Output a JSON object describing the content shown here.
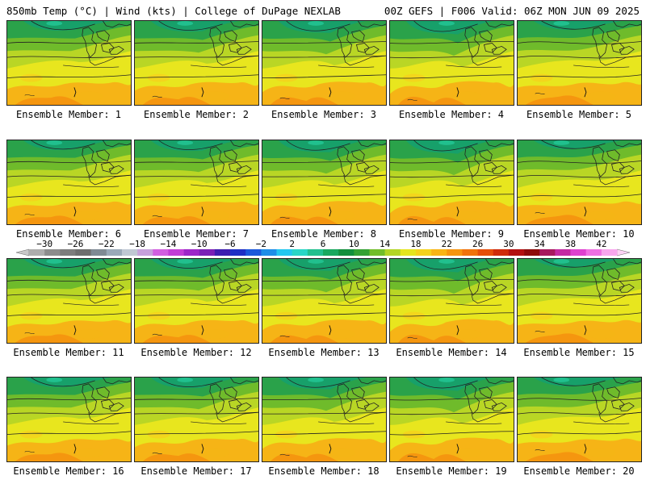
{
  "header": {
    "left": "850mb Temp (°C) | Wind (kts) | College of DuPage NEXLAB",
    "right": "00Z GEFS | F006 Valid: 06Z MON JUN 09 2025"
  },
  "label_prefix": "Ensemble Member: ",
  "members": [
    1,
    2,
    3,
    4,
    5,
    6,
    7,
    8,
    9,
    10,
    11,
    12,
    13,
    14,
    15,
    16,
    17,
    18,
    19,
    20
  ],
  "colorbar": {
    "tick_labels": [
      "−30",
      "−26",
      "−22",
      "−18",
      "−14",
      "−10",
      "−6",
      "−2",
      "2",
      "6",
      "10",
      "14",
      "18",
      "22",
      "26",
      "30",
      "34",
      "38",
      "42"
    ],
    "min": -32,
    "max": 44,
    "step": 2,
    "colors": [
      "#adadad",
      "#8c8c8c",
      "#7d7d7d",
      "#6e6e6e",
      "#7f8a94",
      "#9aa9b8",
      "#c0c8d3",
      "#c7a0db",
      "#d25ee0",
      "#c23cd6",
      "#9d25c8",
      "#7a1fb6",
      "#3d1db0",
      "#1f2fc5",
      "#1b58db",
      "#1d8ee8",
      "#22c7ef",
      "#29d6c6",
      "#21c08e",
      "#18a85e",
      "#128f3c",
      "#34a133",
      "#72bd2a",
      "#b3d524",
      "#e5e51f",
      "#f4d21c",
      "#f8b415",
      "#f6950f",
      "#f0720b",
      "#e64d0a",
      "#d02a0a",
      "#b31010",
      "#8e0a0a",
      "#a8195e",
      "#c42aa2",
      "#de41cf",
      "#ef6fe2",
      "#f8a6ee"
    ]
  }
}
